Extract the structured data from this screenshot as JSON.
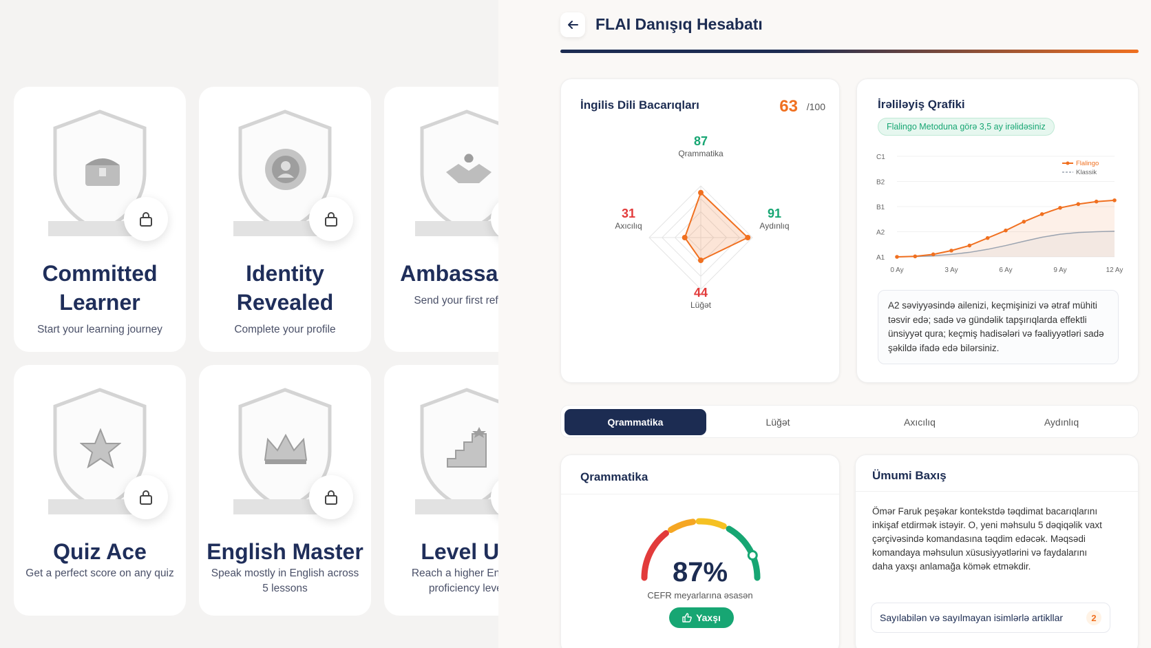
{
  "badges": [
    {
      "title": "Committed Learner",
      "desc": "Start your learning journey",
      "icon": "treasure-chest-icon"
    },
    {
      "title": "Identity Revealed",
      "desc": "Complete your profile",
      "icon": "profile-seal-icon"
    },
    {
      "title": "Ambassador",
      "desc": "Send your first referral",
      "icon": "handshake-icon"
    },
    {
      "title": "Quiz Ace",
      "desc": "Get a perfect score on any quiz",
      "icon": "star-icon"
    },
    {
      "title": "English Master",
      "desc": "Speak mostly in English across 5 lessons",
      "icon": "crown-icon"
    },
    {
      "title": "Level Up",
      "desc": "Reach a higher English proficiency level",
      "icon": "stairs-icon"
    }
  ],
  "header": {
    "title": "FLAI Danışıq Hesabatı"
  },
  "skills": {
    "title": "İngilis Dili Bacarıqları",
    "score": "63",
    "score_max": "/100",
    "items": [
      {
        "label": "Qrammatika",
        "value": "87",
        "color": "#17a673"
      },
      {
        "label": "Aydınlıq",
        "value": "91",
        "color": "#17a673"
      },
      {
        "label": "Lüğət",
        "value": "44",
        "color": "#e23b3b"
      },
      {
        "label": "Axıcılıq",
        "value": "31",
        "color": "#e23b3b"
      }
    ]
  },
  "progress": {
    "title": "İrəliləyiş Qrafiki",
    "pill": "Flalingo Metoduna görə 3,5 ay irəlidəsiniz",
    "description": "A2 səviyyəsində ailenizi, keçmişinizi və ətraf mühiti təsvir edə; sadə və gündəlik tapşırıqlarda effektli ünsiyyət qura; keçmiş hadisələri və fəaliyyətləri sadə şəkildə ifadə edə bilərsiniz."
  },
  "chart_data": {
    "type": "line",
    "x": [
      0,
      1,
      2,
      3,
      4,
      5,
      6,
      7,
      8,
      9,
      10,
      11,
      12
    ],
    "x_ticks": [
      {
        "value": 0,
        "label": "0 Ay"
      },
      {
        "value": 3,
        "label": "3 Ay"
      },
      {
        "value": 6,
        "label": "6 Ay"
      },
      {
        "value": 9,
        "label": "9 Ay"
      },
      {
        "value": 12,
        "label": "12 Ay"
      }
    ],
    "y_ticks": [
      {
        "value": 0,
        "label": "A1"
      },
      {
        "value": 1,
        "label": "A2"
      },
      {
        "value": 2,
        "label": "B1"
      },
      {
        "value": 3,
        "label": "B2"
      },
      {
        "value": 4,
        "label": "C1"
      }
    ],
    "ylim": [
      0,
      4
    ],
    "xlim": [
      0,
      12
    ],
    "legend_position": "top-right",
    "series": [
      {
        "name": "Flalingo",
        "color": "#f07020",
        "style": "solid-markers",
        "values": [
          0,
          0.02,
          0.1,
          0.25,
          0.45,
          0.75,
          1.05,
          1.4,
          1.7,
          1.95,
          2.1,
          2.2,
          2.25
        ]
      },
      {
        "name": "Klassik",
        "color": "#9aa3b0",
        "style": "dashed",
        "values": [
          0,
          0.01,
          0.04,
          0.1,
          0.18,
          0.3,
          0.45,
          0.62,
          0.78,
          0.9,
          0.97,
          1.0,
          1.02
        ]
      }
    ]
  },
  "tabs": [
    {
      "label": "Qrammatika",
      "active": true
    },
    {
      "label": "Lüğət",
      "active": false
    },
    {
      "label": "Axıcılıq",
      "active": false
    },
    {
      "label": "Aydınlıq",
      "active": false
    }
  ],
  "grammar": {
    "title": "Qrammatika",
    "percent": "87%",
    "percent_value": 87,
    "subtitle": "CEFR meyarlarına əsasən",
    "badge": "Yaxşı"
  },
  "overview": {
    "title": "Ümumi Baxış",
    "text": "Ömər Faruk peşəkar kontekstdə təqdimat bacarıqlarını inkişaf etdirmək istəyir. O, yeni məhsulu 5 dəqiqəlik vaxt çərçivəsində komandasına təqdim edəcək. Məqsədi komandaya məhsulun xüsusiyyətlərini və faydalarını daha yaxşı anlamağa kömək etməkdir.",
    "topic_label": "Sayılabilən və sayılmayan isimlərlə artikllar",
    "topic_count": "2"
  }
}
